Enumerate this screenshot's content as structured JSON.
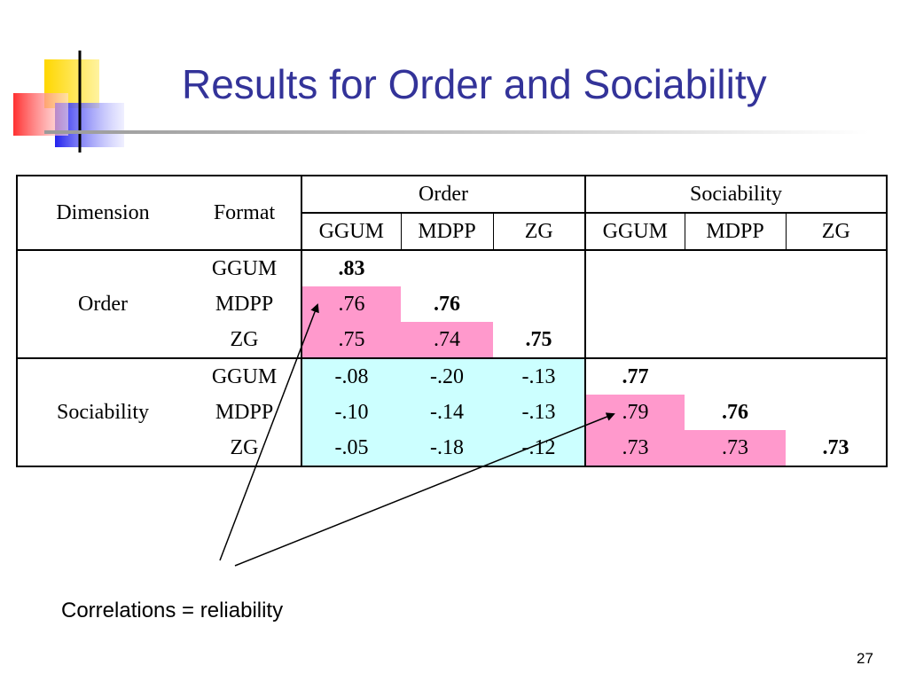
{
  "slide": {
    "title": "Results for Order and Sociability",
    "caption": "Correlations = reliability",
    "page_number": "27"
  },
  "colors": {
    "title": "#333399",
    "reliability_highlight": "#ff99cc",
    "cross_trait_highlight": "#ccffff"
  },
  "table": {
    "headers": {
      "dimension": "Dimension",
      "format": "Format",
      "order": "Order",
      "sociability": "Sociability",
      "order_formats": [
        "GGUM",
        "MDPP",
        "ZG"
      ],
      "sociability_formats": [
        "GGUM",
        "MDPP",
        "ZG"
      ]
    },
    "groups": [
      {
        "dimension": "Order",
        "rows": [
          {
            "format": "GGUM",
            "cells": [
              ".83",
              "",
              "",
              "",
              "",
              ""
            ]
          },
          {
            "format": "MDPP",
            "cells": [
              ".76",
              ".76",
              "",
              "",
              "",
              ""
            ]
          },
          {
            "format": "ZG",
            "cells": [
              ".75",
              ".74",
              ".75",
              "",
              "",
              ""
            ]
          }
        ]
      },
      {
        "dimension": "Sociability",
        "rows": [
          {
            "format": "GGUM",
            "cells": [
              "-.08",
              "-.20",
              "-.13",
              ".77",
              "",
              ""
            ]
          },
          {
            "format": "MDPP",
            "cells": [
              "-.10",
              "-.14",
              "-.13",
              ".79",
              ".76",
              ""
            ]
          },
          {
            "format": "ZG",
            "cells": [
              "-.05",
              "-.18",
              "-.12",
              ".73",
              ".73",
              ".73"
            ]
          }
        ]
      }
    ]
  }
}
